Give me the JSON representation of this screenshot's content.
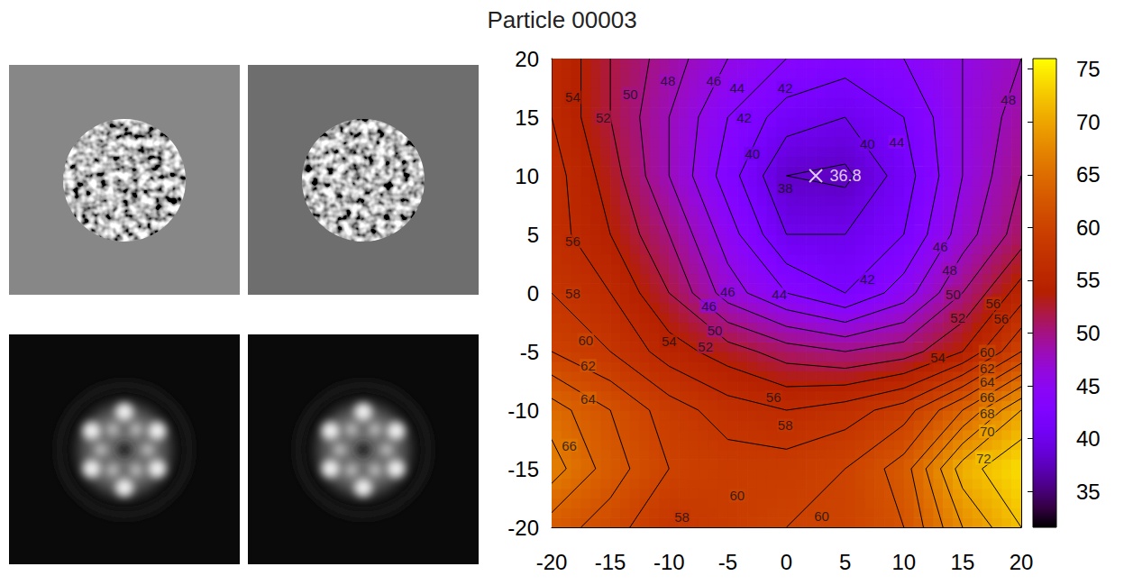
{
  "chart_data": {
    "type": "heatmap",
    "title": "Particle 00003",
    "x": [
      -20,
      -15,
      -10,
      -5,
      0,
      5,
      10,
      15,
      20
    ],
    "y": [
      -20,
      -15,
      -10,
      -5,
      0,
      5,
      10,
      15,
      20
    ],
    "z": [
      [
        63,
        61,
        58,
        59,
        60,
        60,
        62,
        68,
        72
      ],
      [
        67,
        63,
        60,
        59,
        59,
        60,
        63,
        71,
        74
      ],
      [
        65,
        62,
        59,
        57,
        56,
        57,
        59,
        64,
        70
      ],
      [
        60,
        58,
        55,
        53,
        51,
        50,
        51,
        54,
        60
      ],
      [
        58,
        56,
        52,
        47,
        44,
        42,
        45,
        50,
        55
      ],
      [
        57,
        54,
        50,
        45,
        40,
        40,
        42,
        47,
        51
      ],
      [
        57,
        53,
        48,
        43,
        38,
        37.5,
        41,
        46,
        50
      ],
      [
        56,
        52,
        48,
        44,
        41,
        40,
        42,
        46,
        49
      ],
      [
        56,
        52,
        49,
        46,
        44,
        43,
        44,
        46,
        48
      ]
    ],
    "xlim": [
      -20,
      20
    ],
    "ylim": [
      -20,
      20
    ],
    "xticks": [
      -20,
      -15,
      -10,
      -5,
      0,
      5,
      10,
      15,
      20
    ],
    "yticks": [
      -20,
      -15,
      -10,
      -5,
      0,
      5,
      10,
      15,
      20
    ],
    "cbar_lim": [
      31.6,
      76
    ],
    "cbar_ticks": [
      35,
      40,
      45,
      50,
      55,
      60,
      65,
      70,
      75
    ],
    "contour_levels": [
      36,
      38,
      40,
      42,
      44,
      46,
      48,
      50,
      52,
      54,
      56,
      58,
      60,
      62,
      64,
      66,
      68,
      70,
      72,
      74
    ],
    "contour_labels": [
      {
        "x": -18.2,
        "y": 16.7,
        "value": 54
      },
      {
        "x": -15.6,
        "y": 15.0,
        "value": 52
      },
      {
        "x": -13.3,
        "y": 17.0,
        "value": 50
      },
      {
        "x": -10.1,
        "y": 18.1,
        "value": 48
      },
      {
        "x": -6.2,
        "y": 18.1,
        "value": 46
      },
      {
        "x": -4.2,
        "y": 17.5,
        "value": 44
      },
      {
        "x": -0.1,
        "y": 17.5,
        "value": 42
      },
      {
        "x": -3.6,
        "y": 15.0,
        "value": 42
      },
      {
        "x": -2.9,
        "y": 11.9,
        "value": 40
      },
      {
        "x": -0.1,
        "y": 9.0,
        "value": 38
      },
      {
        "x": 6.9,
        "y": 12.7,
        "value": 40
      },
      {
        "x": 9.4,
        "y": 12.9,
        "value": 44
      },
      {
        "x": 18.9,
        "y": 16.5,
        "value": 48
      },
      {
        "x": -18.2,
        "y": 4.4,
        "value": 56
      },
      {
        "x": 13.1,
        "y": 4.0,
        "value": 46
      },
      {
        "x": 13.9,
        "y": 2.0,
        "value": 48
      },
      {
        "x": -18.2,
        "y": 0.0,
        "value": 58
      },
      {
        "x": -5.0,
        "y": 0.1,
        "value": 46
      },
      {
        "x": -6.6,
        "y": -1.1,
        "value": 46
      },
      {
        "x": -0.6,
        "y": -0.1,
        "value": 44
      },
      {
        "x": 6.9,
        "y": 1.2,
        "value": 42
      },
      {
        "x": 14.2,
        "y": -0.1,
        "value": 50
      },
      {
        "x": 14.6,
        "y": -2.1,
        "value": 52
      },
      {
        "x": 17.6,
        "y": -0.9,
        "value": 56
      },
      {
        "x": 18.3,
        "y": -2.2,
        "value": 56
      },
      {
        "x": -6.1,
        "y": -3.2,
        "value": 50
      },
      {
        "x": -10.0,
        "y": -4.1,
        "value": 54
      },
      {
        "x": -6.9,
        "y": -4.6,
        "value": 52
      },
      {
        "x": 12.9,
        "y": -5.5,
        "value": 54
      },
      {
        "x": -17.1,
        "y": -4.0,
        "value": 60
      },
      {
        "x": -16.9,
        "y": -6.2,
        "value": 62
      },
      {
        "x": 17.1,
        "y": -5.0,
        "value": 60
      },
      {
        "x": 17.1,
        "y": -6.4,
        "value": 62
      },
      {
        "x": 17.1,
        "y": -7.6,
        "value": 64
      },
      {
        "x": 17.1,
        "y": -8.9,
        "value": 66
      },
      {
        "x": 17.1,
        "y": -10.3,
        "value": 68
      },
      {
        "x": 17.1,
        "y": -11.8,
        "value": 70
      },
      {
        "x": -16.9,
        "y": -9.0,
        "value": 64
      },
      {
        "x": -1.1,
        "y": -8.9,
        "value": 56
      },
      {
        "x": -0.1,
        "y": -11.3,
        "value": 58
      },
      {
        "x": -18.5,
        "y": -13.0,
        "value": 66
      },
      {
        "x": 16.8,
        "y": -14.1,
        "value": 72
      },
      {
        "x": -4.2,
        "y": -17.3,
        "value": 60
      },
      {
        "x": -8.9,
        "y": -19.1,
        "value": 58
      },
      {
        "x": 3.0,
        "y": -19.0,
        "value": 60
      }
    ],
    "minimum": {
      "x": 2.5,
      "y": 10,
      "value": 36.8
    }
  }
}
